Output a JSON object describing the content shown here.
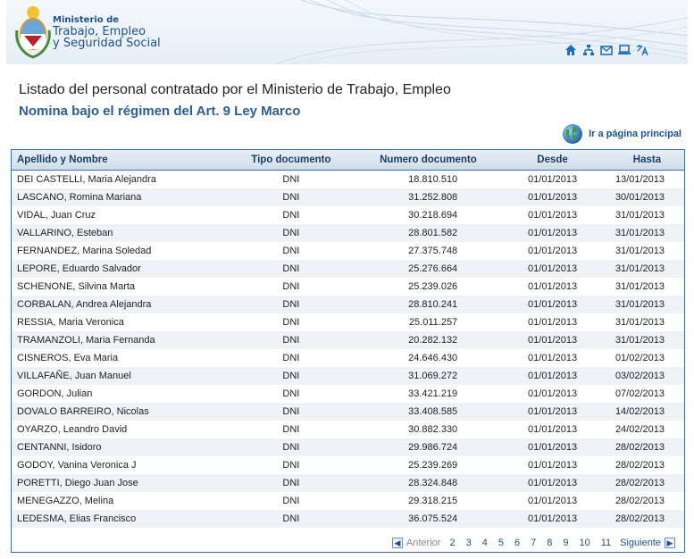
{
  "header": {
    "ministry_line1": "Ministerio de",
    "ministry_line2": "Trabajo, Empleo",
    "ministry_line3": "y Seguridad Social",
    "icons": [
      "home-icon",
      "sitemap-icon",
      "mail-icon",
      "computer-icon",
      "translate-icon"
    ]
  },
  "titles": {
    "main": "Listado del personal contratado por el Ministerio de Trabajo, Empleo",
    "sub": "Nomina bajo el régimen del Art. 9 Ley Marco"
  },
  "home_link": {
    "label": "Ir a página principal"
  },
  "table": {
    "columns": [
      "Apellido y Nombre",
      "Tipo documento",
      "Numero documento",
      "Desde",
      "Hasta"
    ],
    "rows": [
      [
        "DEI CASTELLI, Maria Alejandra",
        "DNI",
        "18.810.510",
        "01/01/2013",
        "13/01/2013"
      ],
      [
        "LASCANO, Romina Mariana",
        "DNI",
        "31.252.808",
        "01/01/2013",
        "30/01/2013"
      ],
      [
        "VIDAL, Juan Cruz",
        "DNI",
        "30.218.694",
        "01/01/2013",
        "31/01/2013"
      ],
      [
        "VALLARINO, Esteban",
        "DNI",
        "28.801.582",
        "01/01/2013",
        "31/01/2013"
      ],
      [
        "FERNANDEZ, Marina Soledad",
        "DNI",
        "27.375.748",
        "01/01/2013",
        "31/01/2013"
      ],
      [
        "LEPORE, Eduardo Salvador",
        "DNI",
        "25.276.664",
        "01/01/2013",
        "31/01/2013"
      ],
      [
        "SCHENONE, Silvina Marta",
        "DNI",
        "25.239.026",
        "01/01/2013",
        "31/01/2013"
      ],
      [
        "CORBALAN, Andrea Alejandra",
        "DNI",
        "28.810.241",
        "01/01/2013",
        "31/01/2013"
      ],
      [
        "RESSIA, Maria Veronica",
        "DNI",
        "25.011.257",
        "01/01/2013",
        "31/01/2013"
      ],
      [
        "TRAMANZOLI, Maria Fernanda",
        "DNI",
        "20.282.132",
        "01/01/2013",
        "31/01/2013"
      ],
      [
        "CISNEROS, Eva Maria",
        "DNI",
        "24.646.430",
        "01/01/2013",
        "01/02/2013"
      ],
      [
        "VILLAFAÑE, Juan Manuel",
        "DNI",
        "31.069.272",
        "01/01/2013",
        "03/02/2013"
      ],
      [
        "GORDON, Julian",
        "DNI",
        "33.421.219",
        "01/01/2013",
        "07/02/2013"
      ],
      [
        "DOVALO BARREIRO, Nicolas",
        "DNI",
        "33.408.585",
        "01/01/2013",
        "14/02/2013"
      ],
      [
        "OYARZO, Leandro David",
        "DNI",
        "30.882.330",
        "01/01/2013",
        "24/02/2013"
      ],
      [
        "CENTANNI, Isidoro",
        "DNI",
        "29.986.724",
        "01/01/2013",
        "28/02/2013"
      ],
      [
        "GODOY, Vanina Veronica J",
        "DNI",
        "25.239.269",
        "01/01/2013",
        "28/02/2013"
      ],
      [
        "PORETTI, Diego Juan Jose",
        "DNI",
        "28.324.848",
        "01/01/2013",
        "28/02/2013"
      ],
      [
        "MENEGAZZO, Melina",
        "DNI",
        "29.318.215",
        "01/01/2013",
        "28/02/2013"
      ],
      [
        "LEDESMA, Elias Francisco",
        "DNI",
        "36.075.524",
        "01/01/2013",
        "28/02/2013"
      ]
    ]
  },
  "pager": {
    "prev_label": "Anterior",
    "next_label": "Siguiente",
    "pages": [
      "2",
      "3",
      "4",
      "5",
      "6",
      "7",
      "8",
      "9",
      "10",
      "11"
    ]
  },
  "colors": {
    "accent": "#1d4f8c",
    "border": "#3a6fae",
    "row_alt": "#eef2f6"
  }
}
